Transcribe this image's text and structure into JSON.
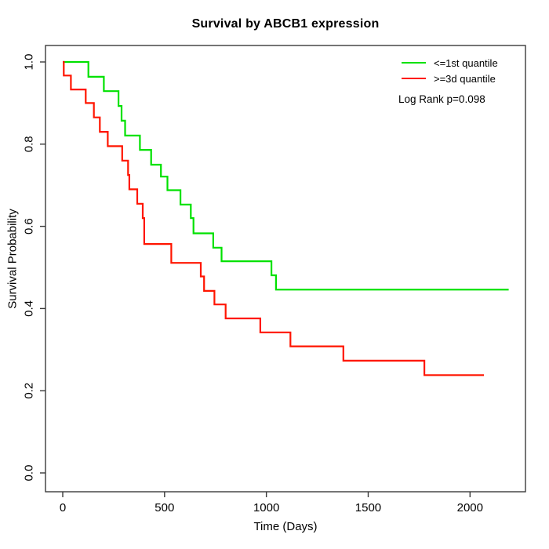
{
  "chart_data": {
    "type": "line",
    "subtype": "kaplan-meier-step",
    "title": "Survival by ABCB1 expression",
    "xlabel": "Time (Days)",
    "ylabel": "Survival Probability",
    "x_ticks": [
      0,
      500,
      1000,
      1500,
      2000
    ],
    "y_tick_labels": [
      "0.0",
      "0.2",
      "0.4",
      "0.6",
      "0.8",
      "1.0"
    ],
    "xlim": [
      0,
      2200
    ],
    "ylim": [
      0.0,
      1.0
    ],
    "grid": false,
    "legend_position": "top-right",
    "annotation": "Log Rank p=0.098",
    "axis_color": "#3a3a3a",
    "legend": [
      {
        "label": "<=1st quantile",
        "color": "#00e100"
      },
      {
        "label": ">=3d quantile",
        "color": "#ff1500"
      }
    ],
    "series": [
      {
        "name": "<=1st quantile",
        "color": "#00e100",
        "end_day": 2190,
        "steps": [
          [
            0,
            1.0
          ],
          [
            126,
            0.964
          ],
          [
            202,
            0.929
          ],
          [
            274,
            0.893
          ],
          [
            289,
            0.857
          ],
          [
            306,
            0.821
          ],
          [
            379,
            0.786
          ],
          [
            434,
            0.75
          ],
          [
            482,
            0.721
          ],
          [
            514,
            0.688
          ],
          [
            578,
            0.653
          ],
          [
            629,
            0.62
          ],
          [
            642,
            0.583
          ],
          [
            739,
            0.548
          ],
          [
            780,
            0.515
          ],
          [
            1025,
            0.481
          ],
          [
            1047,
            0.446
          ]
        ]
      },
      {
        "name": ">=3d quantile",
        "color": "#ff1500",
        "end_day": 2068,
        "steps": [
          [
            0,
            1.0
          ],
          [
            5,
            0.967
          ],
          [
            40,
            0.933
          ],
          [
            113,
            0.9
          ],
          [
            153,
            0.865
          ],
          [
            182,
            0.83
          ],
          [
            221,
            0.795
          ],
          [
            292,
            0.76
          ],
          [
            321,
            0.725
          ],
          [
            327,
            0.69
          ],
          [
            366,
            0.655
          ],
          [
            393,
            0.62
          ],
          [
            400,
            0.557
          ],
          [
            533,
            0.511
          ],
          [
            678,
            0.478
          ],
          [
            694,
            0.443
          ],
          [
            745,
            0.41
          ],
          [
            800,
            0.376
          ],
          [
            970,
            0.342
          ],
          [
            1118,
            0.308
          ],
          [
            1378,
            0.273
          ],
          [
            1776,
            0.238
          ]
        ]
      }
    ]
  }
}
